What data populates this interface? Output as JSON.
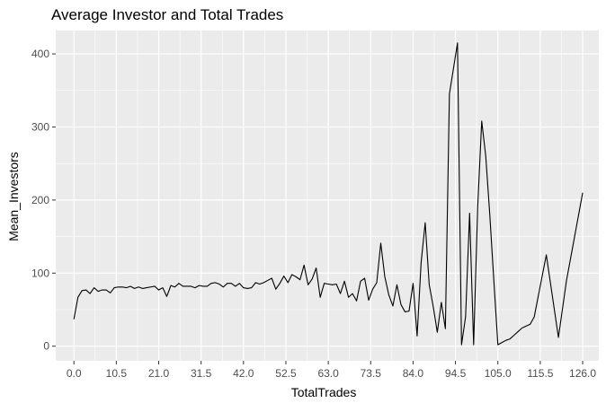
{
  "chart_data": {
    "type": "line",
    "title": "Average Investor and Total Trades",
    "xlabel": "TotalTrades",
    "ylabel": "Mean_Investors",
    "xlim": [
      -4.5,
      130.0
    ],
    "ylim": [
      -20,
      432
    ],
    "x_ticks": [
      0.0,
      10.5,
      21.0,
      31.5,
      42.0,
      52.5,
      63.0,
      73.5,
      84.0,
      94.5,
      105.0,
      115.5,
      126.0
    ],
    "x_tick_labels": [
      "0.0",
      "10.5",
      "21.0",
      "31.5",
      "42.0",
      "52.5",
      "63.0",
      "73.5",
      "84.0",
      "94.5",
      "105.0",
      "115.5",
      "126.0"
    ],
    "y_ticks": [
      0,
      100,
      200,
      300,
      400
    ],
    "y_tick_labels": [
      "0",
      "100",
      "200",
      "300",
      "400"
    ],
    "grid": true,
    "panel_background": "#ebebeb",
    "line_color": "#000000",
    "series": [
      {
        "x": [
          0,
          1,
          2,
          3,
          4,
          5,
          6,
          7,
          8,
          9,
          10,
          11,
          12,
          13,
          14,
          15,
          16,
          17,
          18,
          19,
          20,
          21,
          22,
          23,
          24,
          25,
          26,
          27,
          28,
          29,
          30,
          31,
          32,
          33,
          34,
          35,
          36,
          37,
          38,
          39,
          40,
          41,
          42,
          43,
          44,
          45,
          46,
          47,
          48,
          49,
          50,
          51,
          52,
          53,
          54,
          55,
          56,
          57,
          58,
          59,
          60,
          61,
          62,
          63,
          64,
          65,
          66,
          67,
          68,
          69,
          70,
          71,
          72,
          73,
          74,
          75,
          76,
          77,
          78,
          79,
          80,
          81,
          82,
          83,
          84,
          85,
          86,
          87,
          88,
          89,
          90,
          91,
          92,
          93,
          94,
          95,
          96,
          97,
          98,
          99,
          100,
          101,
          102,
          103,
          104,
          105,
          106,
          107,
          108,
          109,
          110,
          111,
          113,
          114,
          117,
          120,
          122,
          124,
          126
        ],
        "y": [
          37,
          67,
          76,
          77,
          72,
          80,
          75,
          77,
          77,
          73,
          80,
          81,
          81,
          80,
          82,
          79,
          81,
          79,
          80,
          81,
          82,
          77,
          80,
          68,
          83,
          81,
          86,
          82,
          82,
          82,
          80,
          83,
          82,
          82,
          86,
          87,
          85,
          81,
          86,
          86,
          82,
          86,
          80,
          79,
          80,
          87,
          85,
          87,
          90,
          93,
          78,
          86,
          96,
          87,
          98,
          95,
          91,
          111,
          84,
          92,
          107,
          67,
          86,
          85,
          84,
          85,
          72,
          89,
          67,
          72,
          62,
          89,
          93,
          63,
          78,
          87,
          141,
          95,
          70,
          55,
          84,
          57,
          47,
          48,
          86,
          14,
          115,
          169,
          84,
          54,
          19,
          60,
          24,
          345,
          380,
          415,
          2,
          40,
          182,
          2,
          190,
          308,
          260,
          180,
          90,
          2,
          5,
          8,
          10,
          15,
          20,
          25,
          30,
          40,
          125,
          12,
          90,
          150,
          210
        ]
      }
    ]
  }
}
